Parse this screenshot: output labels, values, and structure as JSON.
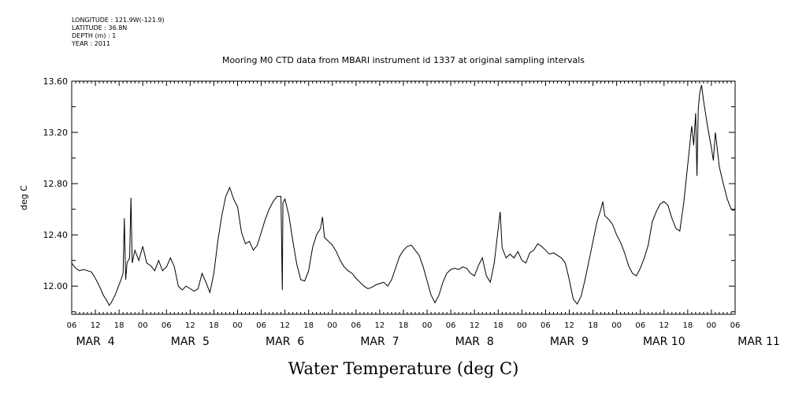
{
  "meta": {
    "longitude": "LONGITUDE : 121.9W(-121.9)",
    "latitude": "LATITUDE : 36.8N",
    "depth": "DEPTH (m) : 1",
    "year": "YEAR : 2011"
  },
  "chart_data": {
    "type": "line",
    "title": "Mooring M0 CTD data from MBARI instrument id 1337 at original sampling intervals",
    "xlabel": "Water Temperature (deg C)",
    "ylabel": "deg C",
    "ylim": [
      11.78,
      13.6
    ],
    "xlim": [
      "2011-03-04T06:00",
      "2011-03-11T06:00"
    ],
    "y_ticks": [
      12.0,
      12.4,
      12.8,
      13.2,
      13.6
    ],
    "y_tick_labels": [
      "12.00",
      "12.40",
      "12.80",
      "13.20",
      "13.60"
    ],
    "hour_tick_labels": [
      "06",
      "12",
      "18",
      "00",
      "06",
      "12",
      "18",
      "00",
      "06",
      "12",
      "18",
      "00",
      "06",
      "12",
      "18",
      "00",
      "06",
      "12",
      "18",
      "00",
      "06",
      "12",
      "18",
      "00",
      "06",
      "12",
      "18",
      "00",
      "06"
    ],
    "date_labels": [
      "MAR  4",
      "MAR  5",
      "MAR  6",
      "MAR  7",
      "MAR  8",
      "MAR  9",
      "MAR 10",
      "MAR 11"
    ],
    "grid": false,
    "series": [
      {
        "color": "#000000",
        "points": [
          [
            "2011-03-04T06:00",
            12.18
          ],
          [
            "2011-03-04T07:00",
            12.14
          ],
          [
            "2011-03-04T08:00",
            12.12
          ],
          [
            "2011-03-04T09:00",
            12.13
          ],
          [
            "2011-03-04T10:00",
            12.12
          ],
          [
            "2011-03-04T11:00",
            12.11
          ],
          [
            "2011-03-04T12:00",
            12.06
          ],
          [
            "2011-03-04T13:00",
            12.0
          ],
          [
            "2011-03-04T14:00",
            11.93
          ],
          [
            "2011-03-04T15:00",
            11.88
          ],
          [
            "2011-03-04T15:30",
            11.85
          ],
          [
            "2011-03-04T16:00",
            11.87
          ],
          [
            "2011-03-04T17:00",
            11.93
          ],
          [
            "2011-03-04T18:00",
            12.01
          ],
          [
            "2011-03-04T18:30",
            12.05
          ],
          [
            "2011-03-04T19:00",
            12.1
          ],
          [
            "2011-03-04T19:20",
            12.53
          ],
          [
            "2011-03-04T19:40",
            12.05
          ],
          [
            "2011-03-04T20:00",
            12.18
          ],
          [
            "2011-03-04T20:40",
            12.22
          ],
          [
            "2011-03-04T21:00",
            12.69
          ],
          [
            "2011-03-04T21:20",
            12.18
          ],
          [
            "2011-03-04T22:00",
            12.28
          ],
          [
            "2011-03-04T23:00",
            12.2
          ],
          [
            "2011-03-05T00:00",
            12.31
          ],
          [
            "2011-03-05T01:00",
            12.18
          ],
          [
            "2011-03-05T02:00",
            12.16
          ],
          [
            "2011-03-05T03:00",
            12.12
          ],
          [
            "2011-03-05T04:00",
            12.2
          ],
          [
            "2011-03-05T05:00",
            12.12
          ],
          [
            "2011-03-05T06:00",
            12.15
          ],
          [
            "2011-03-05T07:00",
            12.22
          ],
          [
            "2011-03-05T08:00",
            12.15
          ],
          [
            "2011-03-05T09:00",
            12.0
          ],
          [
            "2011-03-05T10:00",
            11.97
          ],
          [
            "2011-03-05T11:00",
            12.0
          ],
          [
            "2011-03-05T12:00",
            11.98
          ],
          [
            "2011-03-05T13:00",
            11.96
          ],
          [
            "2011-03-05T14:00",
            11.98
          ],
          [
            "2011-03-05T15:00",
            12.1
          ],
          [
            "2011-03-05T16:00",
            12.03
          ],
          [
            "2011-03-05T17:00",
            11.95
          ],
          [
            "2011-03-05T18:00",
            12.1
          ],
          [
            "2011-03-05T19:00",
            12.35
          ],
          [
            "2011-03-05T20:00",
            12.55
          ],
          [
            "2011-03-05T21:00",
            12.7
          ],
          [
            "2011-03-05T22:00",
            12.77
          ],
          [
            "2011-03-05T23:00",
            12.68
          ],
          [
            "2011-03-06T00:00",
            12.62
          ],
          [
            "2011-03-06T01:00",
            12.42
          ],
          [
            "2011-03-06T02:00",
            12.33
          ],
          [
            "2011-03-06T03:00",
            12.35
          ],
          [
            "2011-03-06T04:00",
            12.28
          ],
          [
            "2011-03-06T05:00",
            12.32
          ],
          [
            "2011-03-06T06:00",
            12.42
          ],
          [
            "2011-03-06T07:00",
            12.52
          ],
          [
            "2011-03-06T08:00",
            12.6
          ],
          [
            "2011-03-06T09:00",
            12.66
          ],
          [
            "2011-03-06T10:00",
            12.7
          ],
          [
            "2011-03-06T11:00",
            12.7
          ],
          [
            "2011-03-06T11:10",
            12.3
          ],
          [
            "2011-03-06T11:20",
            11.97
          ],
          [
            "2011-03-06T11:30",
            12.65
          ],
          [
            "2011-03-06T12:00",
            12.68
          ],
          [
            "2011-03-06T13:00",
            12.55
          ],
          [
            "2011-03-06T14:00",
            12.35
          ],
          [
            "2011-03-06T15:00",
            12.17
          ],
          [
            "2011-03-06T16:00",
            12.05
          ],
          [
            "2011-03-06T17:00",
            12.04
          ],
          [
            "2011-03-06T18:00",
            12.12
          ],
          [
            "2011-03-06T19:00",
            12.3
          ],
          [
            "2011-03-06T20:00",
            12.4
          ],
          [
            "2011-03-06T21:00",
            12.45
          ],
          [
            "2011-03-06T21:30",
            12.54
          ],
          [
            "2011-03-06T22:00",
            12.38
          ],
          [
            "2011-03-06T23:00",
            12.35
          ],
          [
            "2011-03-07T00:00",
            12.32
          ],
          [
            "2011-03-07T01:00",
            12.27
          ],
          [
            "2011-03-07T02:00",
            12.2
          ],
          [
            "2011-03-07T03:00",
            12.15
          ],
          [
            "2011-03-07T04:00",
            12.12
          ],
          [
            "2011-03-07T05:00",
            12.1
          ],
          [
            "2011-03-07T06:00",
            12.06
          ],
          [
            "2011-03-07T07:00",
            12.03
          ],
          [
            "2011-03-07T08:00",
            12.0
          ],
          [
            "2011-03-07T09:00",
            11.98
          ],
          [
            "2011-03-07T10:00",
            11.99
          ],
          [
            "2011-03-07T11:00",
            12.01
          ],
          [
            "2011-03-07T12:00",
            12.02
          ],
          [
            "2011-03-07T13:00",
            12.03
          ],
          [
            "2011-03-07T14:00",
            12.0
          ],
          [
            "2011-03-07T15:00",
            12.05
          ],
          [
            "2011-03-07T16:00",
            12.14
          ],
          [
            "2011-03-07T17:00",
            12.23
          ],
          [
            "2011-03-07T18:00",
            12.28
          ],
          [
            "2011-03-07T19:00",
            12.31
          ],
          [
            "2011-03-07T20:00",
            12.32
          ],
          [
            "2011-03-07T21:00",
            12.28
          ],
          [
            "2011-03-07T22:00",
            12.24
          ],
          [
            "2011-03-07T23:00",
            12.15
          ],
          [
            "2011-03-08T00:00",
            12.04
          ],
          [
            "2011-03-08T01:00",
            11.93
          ],
          [
            "2011-03-08T02:00",
            11.87
          ],
          [
            "2011-03-08T03:00",
            11.93
          ],
          [
            "2011-03-08T04:00",
            12.03
          ],
          [
            "2011-03-08T05:00",
            12.1
          ],
          [
            "2011-03-08T06:00",
            12.13
          ],
          [
            "2011-03-08T07:00",
            12.14
          ],
          [
            "2011-03-08T08:00",
            12.13
          ],
          [
            "2011-03-08T09:00",
            12.15
          ],
          [
            "2011-03-08T10:00",
            12.14
          ],
          [
            "2011-03-08T11:00",
            12.1
          ],
          [
            "2011-03-08T12:00",
            12.08
          ],
          [
            "2011-03-08T13:00",
            12.16
          ],
          [
            "2011-03-08T14:00",
            12.22
          ],
          [
            "2011-03-08T15:00",
            12.08
          ],
          [
            "2011-03-08T16:00",
            12.03
          ],
          [
            "2011-03-08T17:00",
            12.18
          ],
          [
            "2011-03-08T18:00",
            12.45
          ],
          [
            "2011-03-08T18:30",
            12.58
          ],
          [
            "2011-03-08T19:00",
            12.3
          ],
          [
            "2011-03-08T20:00",
            12.22
          ],
          [
            "2011-03-08T21:00",
            12.25
          ],
          [
            "2011-03-08T22:00",
            12.22
          ],
          [
            "2011-03-08T23:00",
            12.27
          ],
          [
            "2011-03-09T00:00",
            12.2
          ],
          [
            "2011-03-09T01:00",
            12.18
          ],
          [
            "2011-03-09T02:00",
            12.26
          ],
          [
            "2011-03-09T03:00",
            12.28
          ],
          [
            "2011-03-09T04:00",
            12.33
          ],
          [
            "2011-03-09T05:00",
            12.31
          ],
          [
            "2011-03-09T06:00",
            12.28
          ],
          [
            "2011-03-09T07:00",
            12.25
          ],
          [
            "2011-03-09T08:00",
            12.26
          ],
          [
            "2011-03-09T09:00",
            12.24
          ],
          [
            "2011-03-09T10:00",
            12.22
          ],
          [
            "2011-03-09T11:00",
            12.18
          ],
          [
            "2011-03-09T12:00",
            12.05
          ],
          [
            "2011-03-09T13:00",
            11.9
          ],
          [
            "2011-03-09T14:00",
            11.86
          ],
          [
            "2011-03-09T15:00",
            11.92
          ],
          [
            "2011-03-09T16:00",
            12.05
          ],
          [
            "2011-03-09T17:00",
            12.2
          ],
          [
            "2011-03-09T18:00",
            12.35
          ],
          [
            "2011-03-09T19:00",
            12.5
          ],
          [
            "2011-03-09T20:00",
            12.6
          ],
          [
            "2011-03-09T20:30",
            12.66
          ],
          [
            "2011-03-09T21:00",
            12.55
          ],
          [
            "2011-03-09T22:00",
            12.52
          ],
          [
            "2011-03-09T23:00",
            12.48
          ],
          [
            "2011-03-10T00:00",
            12.4
          ],
          [
            "2011-03-10T01:00",
            12.34
          ],
          [
            "2011-03-10T02:00",
            12.26
          ],
          [
            "2011-03-10T03:00",
            12.16
          ],
          [
            "2011-03-10T04:00",
            12.1
          ],
          [
            "2011-03-10T05:00",
            12.08
          ],
          [
            "2011-03-10T06:00",
            12.14
          ],
          [
            "2011-03-10T07:00",
            12.22
          ],
          [
            "2011-03-10T08:00",
            12.32
          ],
          [
            "2011-03-10T09:00",
            12.5
          ],
          [
            "2011-03-10T10:00",
            12.58
          ],
          [
            "2011-03-10T11:00",
            12.64
          ],
          [
            "2011-03-10T12:00",
            12.66
          ],
          [
            "2011-03-10T13:00",
            12.63
          ],
          [
            "2011-03-10T14:00",
            12.53
          ],
          [
            "2011-03-10T15:00",
            12.45
          ],
          [
            "2011-03-10T16:00",
            12.43
          ],
          [
            "2011-03-10T17:00",
            12.65
          ],
          [
            "2011-03-10T18:00",
            12.95
          ],
          [
            "2011-03-10T19:00",
            13.25
          ],
          [
            "2011-03-10T19:30",
            13.1
          ],
          [
            "2011-03-10T20:00",
            13.35
          ],
          [
            "2011-03-10T20:20",
            12.86
          ],
          [
            "2011-03-10T20:40",
            13.38
          ],
          [
            "2011-03-10T21:00",
            13.5
          ],
          [
            "2011-03-10T21:30",
            13.57
          ],
          [
            "2011-03-10T22:00",
            13.45
          ],
          [
            "2011-03-10T23:00",
            13.25
          ],
          [
            "2011-03-11T00:00",
            13.08
          ],
          [
            "2011-03-11T00:30",
            12.98
          ],
          [
            "2011-03-11T01:00",
            13.2
          ],
          [
            "2011-03-11T02:00",
            12.93
          ],
          [
            "2011-03-11T03:00",
            12.8
          ],
          [
            "2011-03-11T04:00",
            12.68
          ],
          [
            "2011-03-11T05:00",
            12.6
          ],
          [
            "2011-03-11T05:30",
            12.59
          ],
          [
            "2011-03-11T06:00",
            12.6
          ]
        ]
      }
    ]
  }
}
